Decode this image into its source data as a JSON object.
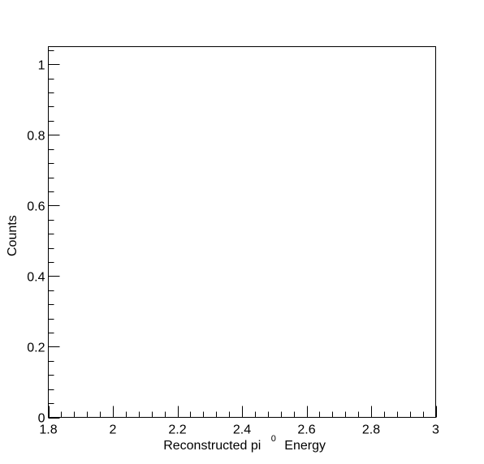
{
  "chart_data": {
    "type": "histogram",
    "title": "",
    "xlabel": {
      "main": "Reconstructed pi",
      "superscript": "0",
      "suffix": "Energy"
    },
    "ylabel": "Counts",
    "xlim": [
      1.8,
      3.0
    ],
    "ylim": [
      0,
      1.05
    ],
    "x_major_ticks": [
      1.8,
      2.0,
      2.2,
      2.4,
      2.6,
      2.8,
      3.0
    ],
    "x_tick_labels": [
      "1.8",
      "2",
      "2.2",
      "2.4",
      "2.6",
      "2.8",
      "3"
    ],
    "x_minor_step": 0.04,
    "y_major_ticks": [
      0,
      0.2,
      0.4,
      0.6,
      0.8,
      1.0
    ],
    "y_tick_labels": [
      "0",
      "0.2",
      "0.4",
      "0.6",
      "0.8",
      "1"
    ],
    "y_minor_step": 0.04,
    "values": [],
    "grid": false,
    "legend": "none"
  }
}
